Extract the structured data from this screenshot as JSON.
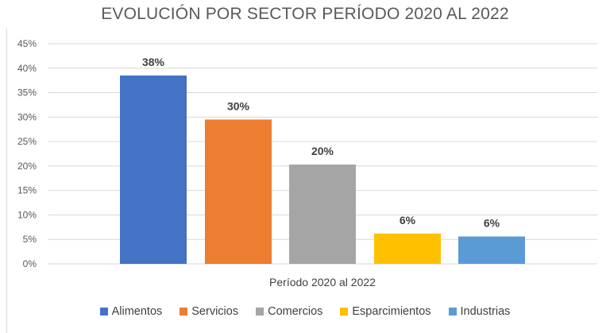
{
  "chart_data": {
    "type": "bar",
    "title": "EVOLUCIÓN POR SECTOR PERÍODO 2020 AL 2022",
    "xlabel": "Período 2020 al 2022",
    "ylabel": "",
    "ylim": [
      0,
      45
    ],
    "y_ticks": [
      "0%",
      "5%",
      "10%",
      "15%",
      "20%",
      "25%",
      "30%",
      "35%",
      "40%",
      "45%"
    ],
    "grid": true,
    "legend_position": "bottom",
    "series": [
      {
        "name": "Alimentos",
        "value": 38.5,
        "label": "38%",
        "color": "#4472C4"
      },
      {
        "name": "Servicios",
        "value": 29.5,
        "label": "30%",
        "color": "#ED7D31"
      },
      {
        "name": "Comercios",
        "value": 20.3,
        "label": "20%",
        "color": "#A5A5A5"
      },
      {
        "name": "Esparcimientos",
        "value": 6.2,
        "label": "6%",
        "color": "#FFC000"
      },
      {
        "name": "Industrias",
        "value": 5.6,
        "label": "6%",
        "color": "#5B9BD5"
      }
    ]
  }
}
